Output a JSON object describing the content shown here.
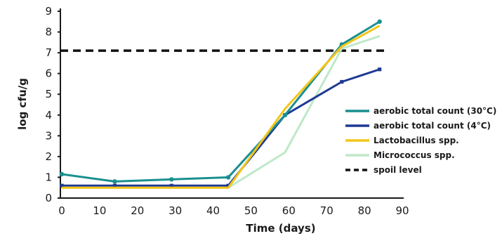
{
  "chart_data": {
    "type": "line",
    "title": "",
    "xlabel": "Time (days)",
    "ylabel": "log cfu/g",
    "xlim": [
      0,
      90
    ],
    "ylim": [
      0,
      9
    ],
    "x_ticks": [
      "0",
      "10",
      "20",
      "30",
      "40",
      "50",
      "60",
      "70",
      "80",
      "90"
    ],
    "y_ticks": [
      "0",
      "1",
      "2",
      "3",
      "4",
      "5",
      "6",
      "7",
      "8",
      "9"
    ],
    "grid": false,
    "legend_position": "right",
    "series": [
      {
        "name": "aerobic total count (30°C)",
        "color": "#1a8f8f",
        "marker": "circle",
        "x": [
          0,
          14,
          29,
          44,
          59,
          74,
          84
        ],
        "y": [
          1.15,
          0.8,
          0.9,
          1.0,
          4.0,
          7.4,
          8.5
        ]
      },
      {
        "name": "aerobic total count (4°C)",
        "color": "#1f3a93",
        "marker": "square",
        "x": [
          0,
          14,
          29,
          44,
          59,
          74,
          84
        ],
        "y": [
          0.6,
          0.6,
          0.6,
          0.6,
          4.0,
          5.6,
          6.2
        ]
      },
      {
        "name": "Lactobacillus spp.",
        "color": "#f5c518",
        "marker": "none",
        "x": [
          0,
          14,
          29,
          44,
          59,
          74,
          84
        ],
        "y": [
          0.5,
          0.5,
          0.5,
          0.5,
          4.3,
          7.3,
          8.3
        ]
      },
      {
        "name": "Micrococcus spp.",
        "color": "#bfe8c8",
        "marker": "none",
        "x": [
          0,
          14,
          29,
          44,
          59,
          74,
          84
        ],
        "y": [
          0.5,
          0.5,
          0.5,
          0.5,
          2.2,
          7.2,
          7.8
        ]
      }
    ],
    "reference_line": {
      "name": "spoil level",
      "y": 7.1,
      "color": "#111111",
      "style": "dashed"
    }
  }
}
